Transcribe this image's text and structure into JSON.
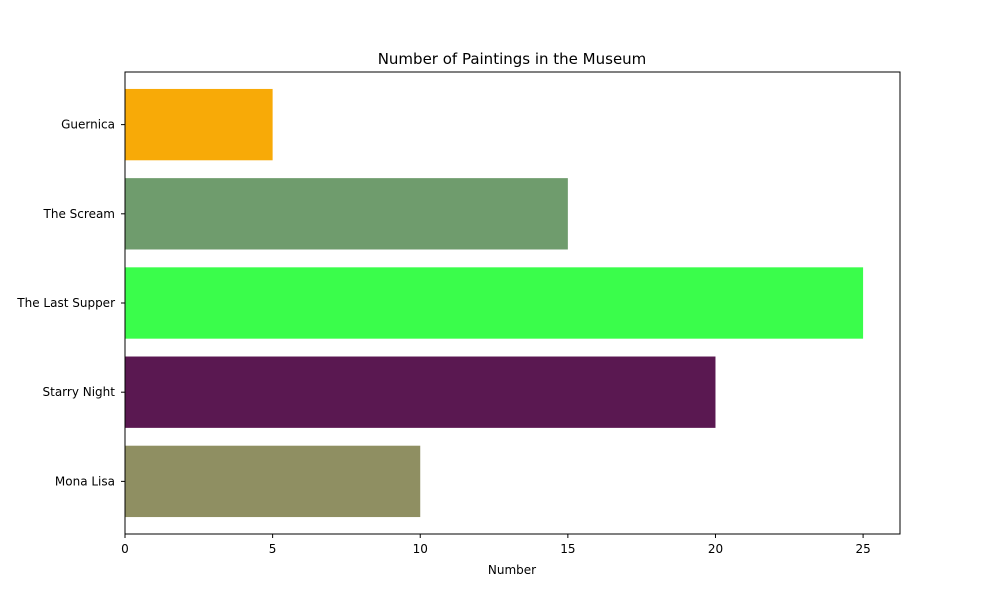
{
  "chart_data": {
    "type": "bar",
    "orientation": "horizontal",
    "title": "Number of Paintings in the Museum",
    "xlabel": "Number",
    "ylabel": "",
    "categories": [
      "Mona Lisa",
      "Starry Night",
      "The Last Supper",
      "The Scream",
      "Guernica"
    ],
    "values": [
      10,
      20,
      25,
      15,
      5
    ],
    "colors": [
      "#8f8f62",
      "#5a1851",
      "#3afd4b",
      "#6f9c6d",
      "#f8aa07"
    ],
    "xlim": [
      0,
      26.25
    ],
    "xticks": [
      0,
      5,
      10,
      15,
      20,
      25
    ],
    "grid": false,
    "legend": false
  }
}
